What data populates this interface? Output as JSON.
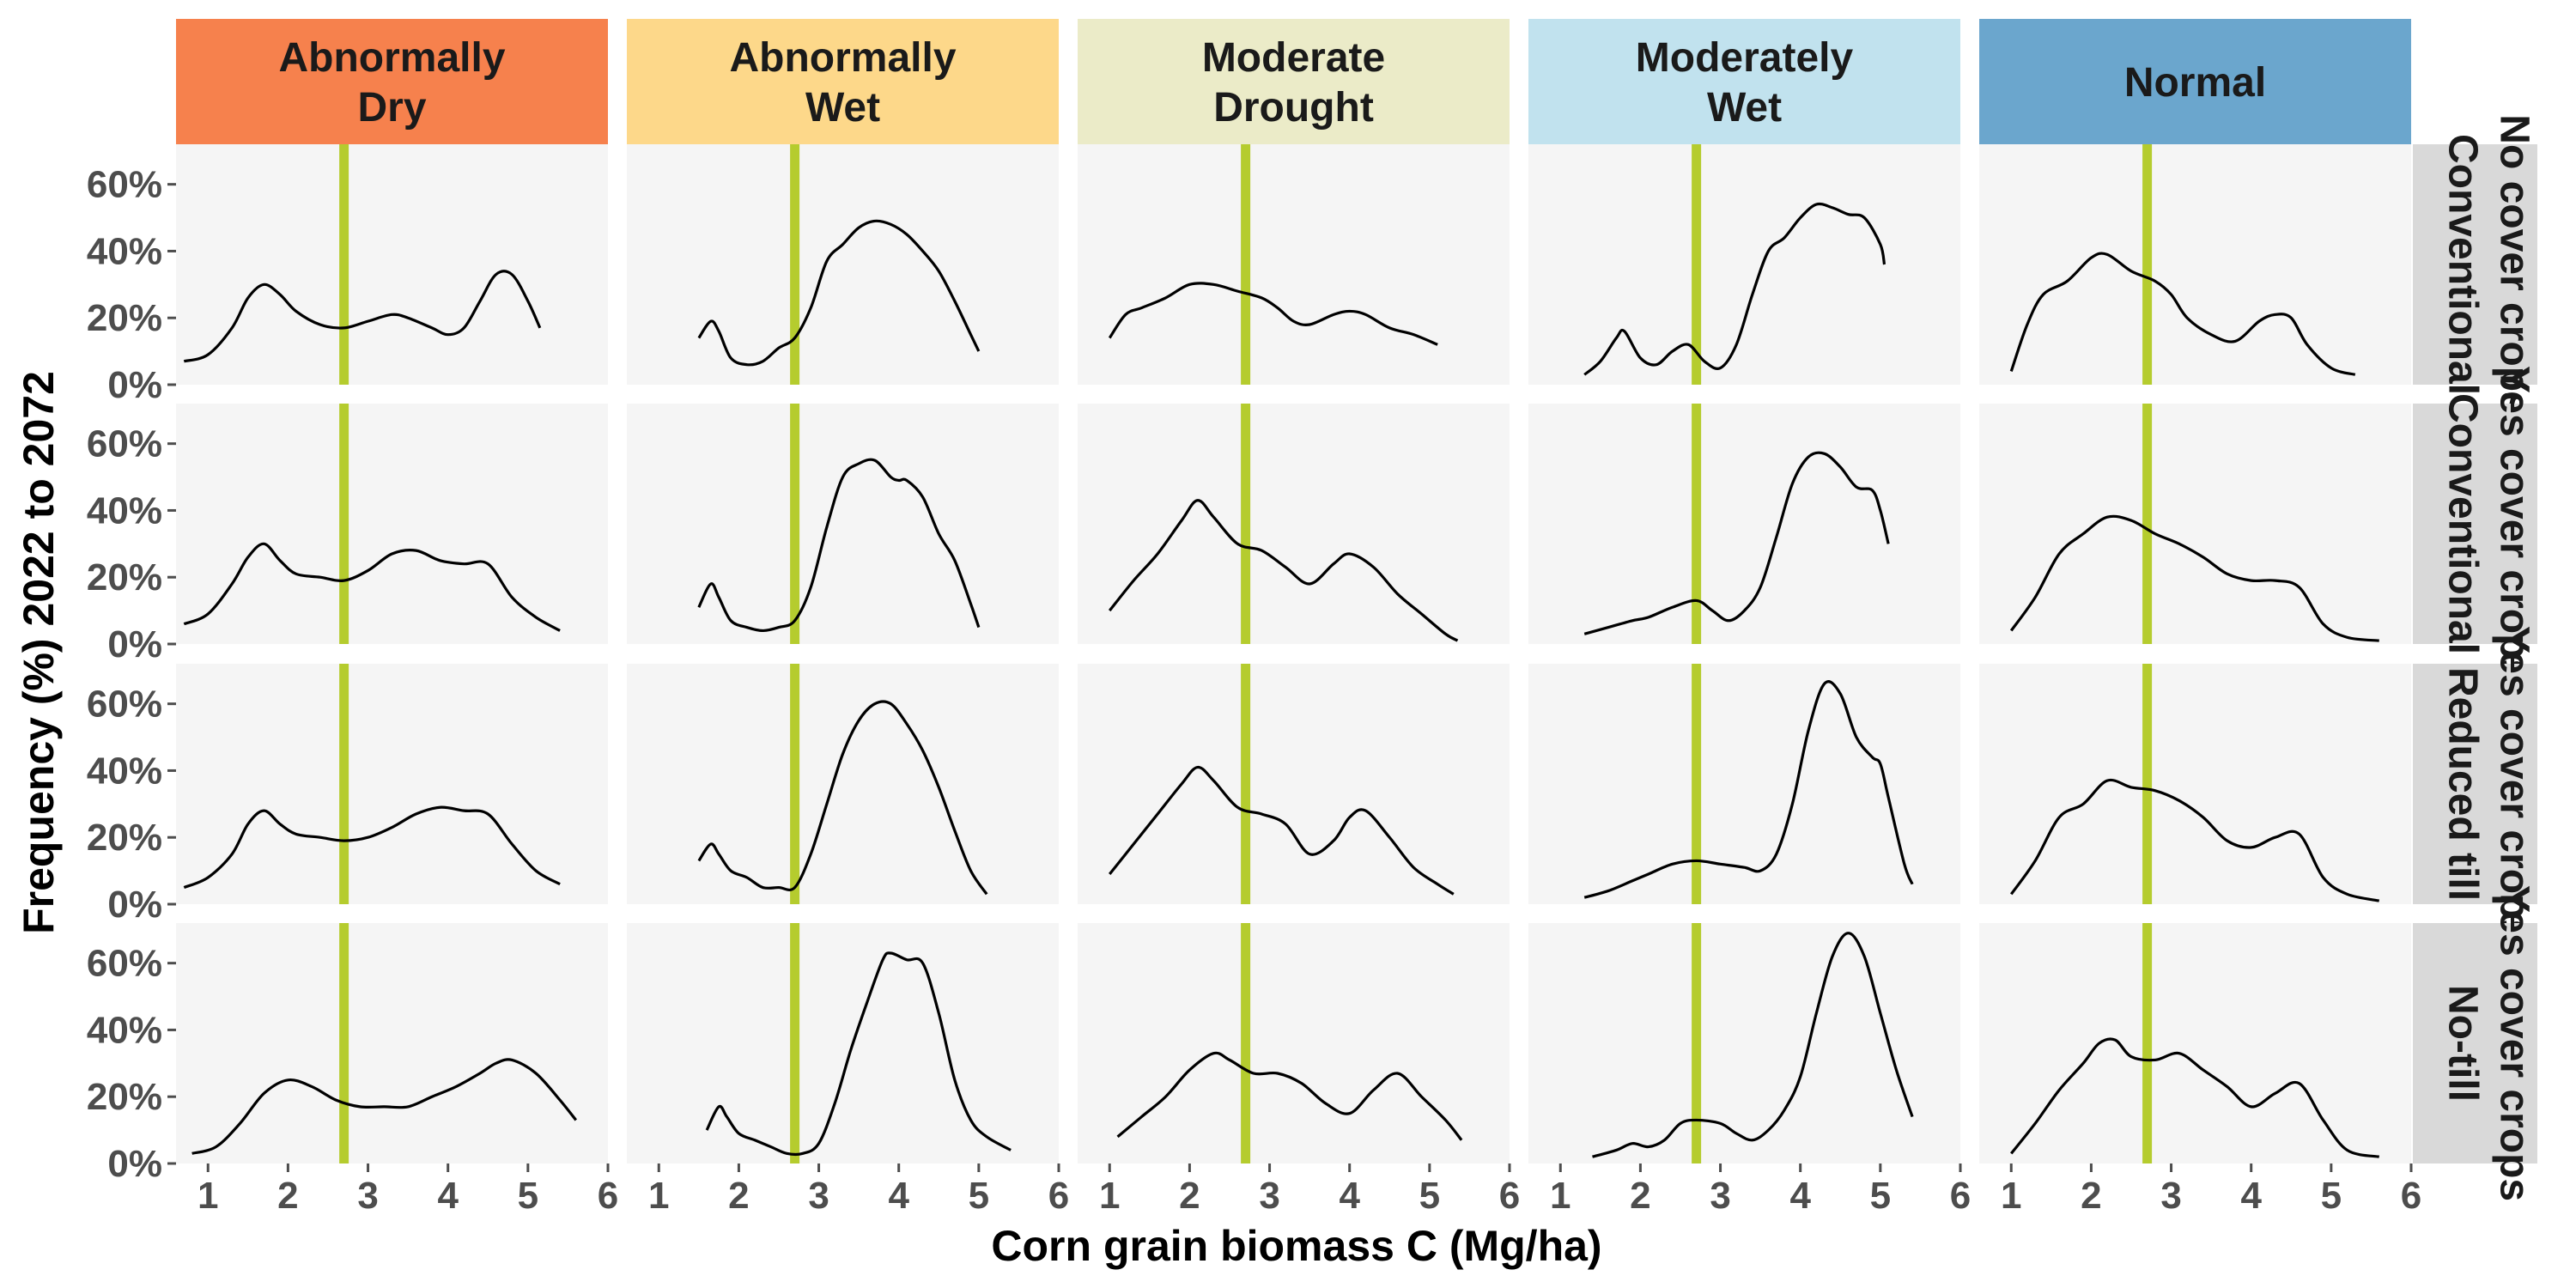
{
  "chart_data": {
    "type": "line",
    "xlabel": "Corn grain biomass C (Mg/ha)",
    "ylabel": "Frequency (%) 2022 to 2072",
    "xlim": [
      0.6,
      6.0
    ],
    "ylim": [
      0,
      0.72
    ],
    "x_ticks": [
      1,
      2,
      3,
      4,
      5,
      6
    ],
    "y_ticks": [
      0,
      0.2,
      0.4,
      0.6
    ],
    "y_tick_labels": [
      "0%",
      "20%",
      "40%",
      "60%"
    ],
    "grid": false,
    "reference_line_x": 2.7,
    "reference_line_color": "#b5cc2e",
    "panel_background": "#f5f5f5",
    "columns": [
      {
        "label": "Abnormally\nDry",
        "color": "#f6814d"
      },
      {
        "label": "Abnormally\nWet",
        "color": "#fdd88a"
      },
      {
        "label": "Moderate\nDrought",
        "color": "#ebebc8"
      },
      {
        "label": "Moderately\nWet",
        "color": "#c1e2ee"
      },
      {
        "label": "Normal",
        "color": "#6ba6cd"
      }
    ],
    "rows": [
      {
        "label": "No cover crops Conventional"
      },
      {
        "label": "Yes cover crops Conventional"
      },
      {
        "label": "Yes cover crops Reduced till"
      },
      {
        "label": "Yes cover crops No-till"
      }
    ],
    "panels": [
      [
        {
          "x": [
            0.7,
            1.0,
            1.3,
            1.5,
            1.7,
            1.9,
            2.1,
            2.4,
            2.7,
            3.0,
            3.3,
            3.5,
            3.8,
            4.0,
            4.2,
            4.4,
            4.6,
            4.8,
            5.0,
            5.15
          ],
          "y": [
            0.07,
            0.09,
            0.17,
            0.26,
            0.3,
            0.27,
            0.22,
            0.18,
            0.17,
            0.19,
            0.21,
            0.2,
            0.17,
            0.15,
            0.17,
            0.25,
            0.33,
            0.33,
            0.25,
            0.17
          ]
        },
        {
          "x": [
            1.5,
            1.65,
            1.75,
            1.9,
            2.1,
            2.3,
            2.5,
            2.7,
            2.9,
            3.1,
            3.3,
            3.5,
            3.7,
            3.9,
            4.1,
            4.3,
            4.5,
            4.7,
            4.9,
            5.0
          ],
          "y": [
            0.14,
            0.19,
            0.16,
            0.08,
            0.06,
            0.07,
            0.11,
            0.14,
            0.23,
            0.37,
            0.42,
            0.47,
            0.49,
            0.48,
            0.45,
            0.4,
            0.34,
            0.25,
            0.15,
            0.1
          ]
        },
        {
          "x": [
            1.0,
            1.2,
            1.4,
            1.7,
            2.0,
            2.3,
            2.6,
            2.9,
            3.1,
            3.3,
            3.5,
            3.8,
            4.0,
            4.2,
            4.5,
            4.8,
            5.1
          ],
          "y": [
            0.14,
            0.21,
            0.23,
            0.26,
            0.3,
            0.3,
            0.28,
            0.26,
            0.23,
            0.19,
            0.18,
            0.21,
            0.22,
            0.21,
            0.17,
            0.15,
            0.12
          ]
        },
        {
          "x": [
            1.3,
            1.5,
            1.7,
            1.8,
            2.0,
            2.2,
            2.4,
            2.6,
            2.8,
            3.0,
            3.2,
            3.4,
            3.6,
            3.8,
            4.0,
            4.2,
            4.4,
            4.6,
            4.8,
            5.0,
            5.05
          ],
          "y": [
            0.03,
            0.07,
            0.14,
            0.16,
            0.08,
            0.06,
            0.1,
            0.12,
            0.07,
            0.05,
            0.12,
            0.27,
            0.4,
            0.44,
            0.5,
            0.54,
            0.53,
            0.51,
            0.5,
            0.42,
            0.36
          ]
        },
        {
          "x": [
            1.0,
            1.2,
            1.4,
            1.7,
            2.0,
            2.2,
            2.5,
            2.8,
            3.0,
            3.2,
            3.5,
            3.8,
            4.1,
            4.3,
            4.5,
            4.7,
            5.0,
            5.3
          ],
          "y": [
            0.04,
            0.18,
            0.27,
            0.31,
            0.38,
            0.39,
            0.34,
            0.31,
            0.27,
            0.2,
            0.15,
            0.13,
            0.19,
            0.21,
            0.2,
            0.12,
            0.05,
            0.03
          ]
        }
      ],
      [
        {
          "x": [
            0.7,
            1.0,
            1.3,
            1.5,
            1.7,
            1.9,
            2.1,
            2.4,
            2.7,
            3.0,
            3.3,
            3.6,
            3.9,
            4.2,
            4.5,
            4.8,
            5.1,
            5.4
          ],
          "y": [
            0.06,
            0.09,
            0.18,
            0.26,
            0.3,
            0.25,
            0.21,
            0.2,
            0.19,
            0.22,
            0.27,
            0.28,
            0.25,
            0.24,
            0.24,
            0.14,
            0.08,
            0.04
          ]
        },
        {
          "x": [
            1.5,
            1.65,
            1.75,
            1.9,
            2.1,
            2.3,
            2.5,
            2.7,
            2.9,
            3.1,
            3.3,
            3.5,
            3.7,
            3.9,
            4.0,
            4.1,
            4.3,
            4.5,
            4.7,
            4.9,
            5.0
          ],
          "y": [
            0.11,
            0.18,
            0.14,
            0.07,
            0.05,
            0.04,
            0.05,
            0.07,
            0.17,
            0.35,
            0.5,
            0.54,
            0.55,
            0.5,
            0.49,
            0.49,
            0.44,
            0.33,
            0.25,
            0.12,
            0.05
          ]
        },
        {
          "x": [
            1.0,
            1.3,
            1.6,
            1.9,
            2.1,
            2.3,
            2.6,
            2.9,
            3.2,
            3.5,
            3.8,
            4.0,
            4.3,
            4.6,
            4.9,
            5.2,
            5.35
          ],
          "y": [
            0.1,
            0.19,
            0.27,
            0.37,
            0.43,
            0.38,
            0.3,
            0.28,
            0.23,
            0.18,
            0.24,
            0.27,
            0.23,
            0.15,
            0.09,
            0.03,
            0.01
          ]
        },
        {
          "x": [
            1.3,
            1.6,
            1.9,
            2.1,
            2.4,
            2.7,
            2.9,
            3.1,
            3.3,
            3.5,
            3.7,
            3.9,
            4.1,
            4.3,
            4.5,
            4.7,
            4.9,
            5.0,
            5.1
          ],
          "y": [
            0.03,
            0.05,
            0.07,
            0.08,
            0.11,
            0.13,
            0.1,
            0.07,
            0.1,
            0.17,
            0.32,
            0.48,
            0.56,
            0.57,
            0.53,
            0.47,
            0.46,
            0.4,
            0.3
          ]
        },
        {
          "x": [
            1.0,
            1.3,
            1.6,
            1.9,
            2.2,
            2.5,
            2.8,
            3.1,
            3.4,
            3.7,
            4.0,
            4.3,
            4.6,
            4.9,
            5.2,
            5.6
          ],
          "y": [
            0.04,
            0.14,
            0.27,
            0.33,
            0.38,
            0.37,
            0.33,
            0.3,
            0.26,
            0.21,
            0.19,
            0.19,
            0.17,
            0.06,
            0.02,
            0.01
          ]
        }
      ],
      [
        {
          "x": [
            0.7,
            1.0,
            1.3,
            1.5,
            1.7,
            1.9,
            2.1,
            2.4,
            2.7,
            3.0,
            3.3,
            3.6,
            3.9,
            4.2,
            4.5,
            4.8,
            5.1,
            5.4
          ],
          "y": [
            0.05,
            0.08,
            0.15,
            0.24,
            0.28,
            0.24,
            0.21,
            0.2,
            0.19,
            0.2,
            0.23,
            0.27,
            0.29,
            0.28,
            0.27,
            0.18,
            0.1,
            0.06
          ]
        },
        {
          "x": [
            1.5,
            1.65,
            1.75,
            1.9,
            2.1,
            2.3,
            2.5,
            2.7,
            2.9,
            3.1,
            3.3,
            3.5,
            3.7,
            3.9,
            4.1,
            4.3,
            4.5,
            4.7,
            4.9,
            5.1
          ],
          "y": [
            0.13,
            0.18,
            0.15,
            0.1,
            0.08,
            0.05,
            0.05,
            0.05,
            0.15,
            0.3,
            0.45,
            0.55,
            0.6,
            0.6,
            0.54,
            0.46,
            0.35,
            0.22,
            0.1,
            0.03
          ]
        },
        {
          "x": [
            1.0,
            1.3,
            1.6,
            1.9,
            2.1,
            2.3,
            2.6,
            2.9,
            3.2,
            3.5,
            3.8,
            4.0,
            4.2,
            4.5,
            4.8,
            5.1,
            5.3
          ],
          "y": [
            0.09,
            0.18,
            0.27,
            0.36,
            0.41,
            0.37,
            0.29,
            0.27,
            0.24,
            0.15,
            0.19,
            0.26,
            0.28,
            0.2,
            0.11,
            0.06,
            0.03
          ]
        },
        {
          "x": [
            1.3,
            1.6,
            1.9,
            2.1,
            2.4,
            2.7,
            3.0,
            3.3,
            3.5,
            3.7,
            3.9,
            4.1,
            4.3,
            4.5,
            4.7,
            4.9,
            5.0,
            5.1,
            5.3,
            5.4
          ],
          "y": [
            0.02,
            0.04,
            0.07,
            0.09,
            0.12,
            0.13,
            0.12,
            0.11,
            0.1,
            0.15,
            0.3,
            0.52,
            0.66,
            0.63,
            0.5,
            0.44,
            0.42,
            0.32,
            0.12,
            0.06
          ]
        },
        {
          "x": [
            1.0,
            1.3,
            1.6,
            1.9,
            2.2,
            2.5,
            2.8,
            3.1,
            3.4,
            3.7,
            4.0,
            4.3,
            4.6,
            4.9,
            5.2,
            5.6
          ],
          "y": [
            0.03,
            0.13,
            0.26,
            0.3,
            0.37,
            0.35,
            0.34,
            0.31,
            0.26,
            0.19,
            0.17,
            0.2,
            0.21,
            0.08,
            0.03,
            0.01
          ]
        }
      ],
      [
        {
          "x": [
            0.8,
            1.1,
            1.4,
            1.7,
            2.0,
            2.3,
            2.6,
            2.9,
            3.2,
            3.5,
            3.8,
            4.1,
            4.4,
            4.6,
            4.8,
            5.1,
            5.4,
            5.6
          ],
          "y": [
            0.03,
            0.05,
            0.12,
            0.21,
            0.25,
            0.23,
            0.19,
            0.17,
            0.17,
            0.17,
            0.2,
            0.23,
            0.27,
            0.3,
            0.31,
            0.27,
            0.19,
            0.13
          ]
        },
        {
          "x": [
            1.6,
            1.75,
            1.85,
            2.0,
            2.2,
            2.4,
            2.6,
            2.8,
            3.0,
            3.2,
            3.4,
            3.6,
            3.8,
            3.9,
            4.1,
            4.3,
            4.5,
            4.7,
            4.9,
            5.1,
            5.4
          ],
          "y": [
            0.1,
            0.17,
            0.14,
            0.09,
            0.07,
            0.05,
            0.03,
            0.03,
            0.06,
            0.18,
            0.34,
            0.48,
            0.61,
            0.63,
            0.61,
            0.6,
            0.45,
            0.25,
            0.13,
            0.08,
            0.04
          ]
        },
        {
          "x": [
            1.1,
            1.4,
            1.7,
            2.0,
            2.3,
            2.5,
            2.8,
            3.1,
            3.4,
            3.7,
            4.0,
            4.3,
            4.6,
            4.9,
            5.2,
            5.4
          ],
          "y": [
            0.08,
            0.14,
            0.2,
            0.28,
            0.33,
            0.31,
            0.27,
            0.27,
            0.24,
            0.18,
            0.15,
            0.22,
            0.27,
            0.2,
            0.13,
            0.07
          ]
        },
        {
          "x": [
            1.4,
            1.7,
            1.9,
            2.1,
            2.3,
            2.5,
            2.7,
            3.0,
            3.2,
            3.4,
            3.6,
            3.8,
            4.0,
            4.2,
            4.4,
            4.6,
            4.8,
            5.0,
            5.2,
            5.4
          ],
          "y": [
            0.02,
            0.04,
            0.06,
            0.05,
            0.07,
            0.12,
            0.13,
            0.12,
            0.09,
            0.07,
            0.1,
            0.16,
            0.26,
            0.45,
            0.62,
            0.69,
            0.62,
            0.45,
            0.28,
            0.14
          ]
        },
        {
          "x": [
            1.0,
            1.3,
            1.6,
            1.9,
            2.1,
            2.3,
            2.5,
            2.8,
            3.1,
            3.4,
            3.7,
            4.0,
            4.3,
            4.6,
            4.9,
            5.2,
            5.6
          ],
          "y": [
            0.03,
            0.12,
            0.22,
            0.3,
            0.36,
            0.37,
            0.32,
            0.31,
            0.33,
            0.28,
            0.23,
            0.17,
            0.21,
            0.24,
            0.13,
            0.04,
            0.02
          ]
        }
      ]
    ]
  }
}
